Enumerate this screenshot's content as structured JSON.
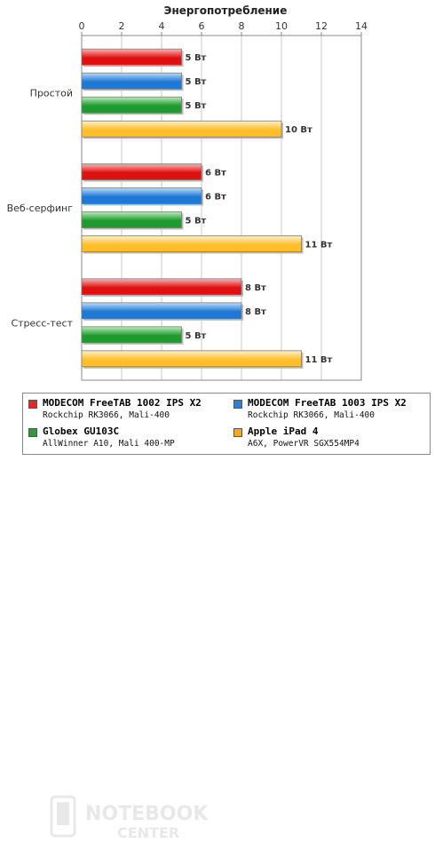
{
  "chart_data": {
    "type": "bar",
    "orientation": "horizontal",
    "title": "Энергопотребление",
    "xlim": [
      0,
      14
    ],
    "xticks": [
      0,
      2,
      4,
      6,
      8,
      10,
      12,
      14
    ],
    "grid": true,
    "categories": [
      "Простой",
      "Веб-серфинг",
      "Стресс-тест"
    ],
    "series": [
      {
        "name": "MODECOM FreeTAB 1002 IPS X2",
        "values": [
          5,
          6,
          8
        ],
        "labels": [
          "5 Вт",
          "6 Вт",
          "8 Вт"
        ]
      },
      {
        "name": "MODECOM FreeTAB 1003 IPS X2",
        "values": [
          5,
          6,
          8
        ],
        "labels": [
          "5 Вт",
          "6 Вт",
          "8 Вт"
        ]
      },
      {
        "name": "Globex GU103C",
        "values": [
          5,
          5,
          5
        ],
        "labels": [
          "5 Вт",
          "5 Вт",
          "5 Вт"
        ]
      },
      {
        "name": "Apple iPad 4",
        "values": [
          10,
          11,
          11
        ],
        "labels": [
          "10 Вт",
          "11 Вт",
          "11 Вт"
        ]
      }
    ],
    "legend_placement": "bottom"
  },
  "legend": [
    {
      "name": "MODECOM FreeTAB 1002 IPS X2",
      "sub": "Rockchip RK3066, Mali-400",
      "color": "#e8262a"
    },
    {
      "name": "MODECOM FreeTAB 1003 IPS X2",
      "sub": "Rockchip RK3066, Mali-400",
      "color": "#2f7fd0"
    },
    {
      "name": "Globex GU103C",
      "sub": "AllWinner A10, Mali 400-MP",
      "color": "#2e9a3e"
    },
    {
      "name": "Apple iPad 4",
      "sub": "A6X, PowerVR SGX554MP4",
      "color": "#f5a623"
    }
  ],
  "watermark": {
    "line1": "NOTEBOOK",
    "line2": "CENTER"
  },
  "colors": {
    "series": [
      {
        "light": "#ffb3b3",
        "dark": "#e01010"
      },
      {
        "light": "#b8dcff",
        "dark": "#1e78d6"
      },
      {
        "light": "#b6efb8",
        "dark": "#1f9a2f"
      },
      {
        "light": "#fff2c4",
        "dark": "#ffbf2a"
      }
    ],
    "grid": "#c8c8c8",
    "axis": "#888888"
  }
}
